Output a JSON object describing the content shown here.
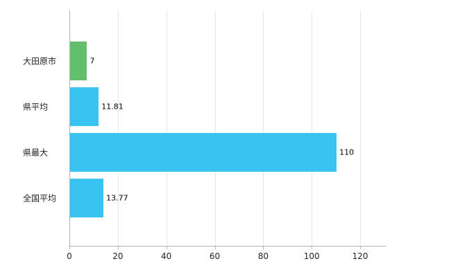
{
  "chart_data": {
    "type": "bar",
    "orientation": "horizontal",
    "title": "",
    "xlabel": "",
    "ylabel": "",
    "categories": [
      "大田原市",
      "県平均",
      "県最大",
      "全国平均"
    ],
    "values": [
      7,
      11.81,
      110,
      13.77
    ],
    "value_labels": [
      "7",
      "11.81",
      "110",
      "13.77"
    ],
    "bar_colors": [
      "#63bf6b",
      "#38c3f1",
      "#38c3f1",
      "#38c3f1"
    ],
    "x_ticks": [
      0,
      20,
      40,
      60,
      80,
      100,
      120
    ],
    "xlim": [
      0,
      130.3
    ],
    "grid": "vertical-only",
    "legend": "none",
    "colors": {
      "background": "#ffffff",
      "gridline": "#e6e6e6",
      "axis": "#b3b3b3",
      "green_bar": "#63bf6b",
      "blue_bar": "#38c3f1",
      "text": "#222222"
    }
  }
}
